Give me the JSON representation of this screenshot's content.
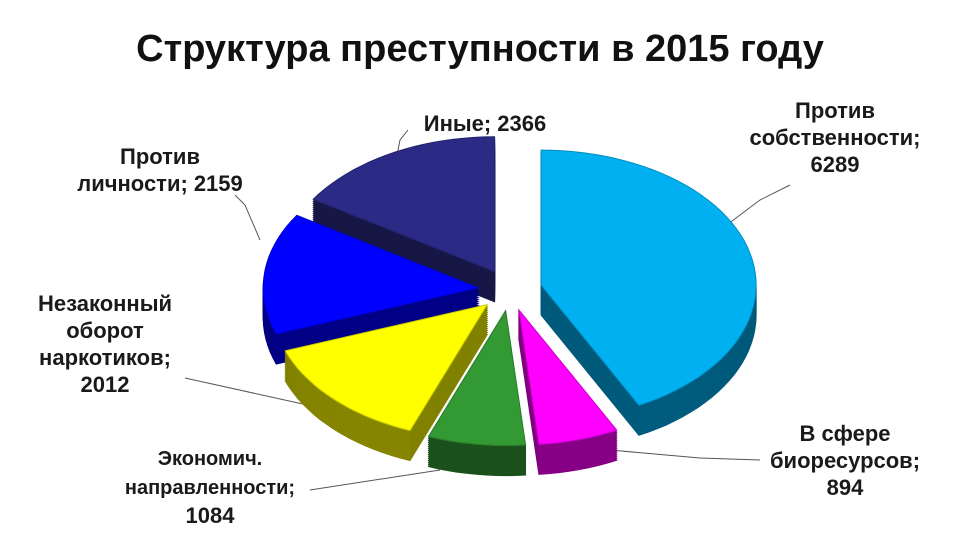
{
  "chart_data": {
    "type": "pie3d",
    "title": "Структура преступности в 2015 году",
    "categories": [
      "Против собственности;",
      "В сфере биоресурсов;",
      "Экономич. направленности;",
      "Незаконный оборот наркотиков;",
      "Против личности;",
      "Иные;"
    ],
    "values": [
      6289,
      894,
      1084,
      2012,
      2159,
      2366
    ],
    "colors": [
      "#00b0f0",
      "#ff00ff",
      "#339933",
      "#ffff00",
      "#0000ff",
      "#2b2b86"
    ]
  }
}
